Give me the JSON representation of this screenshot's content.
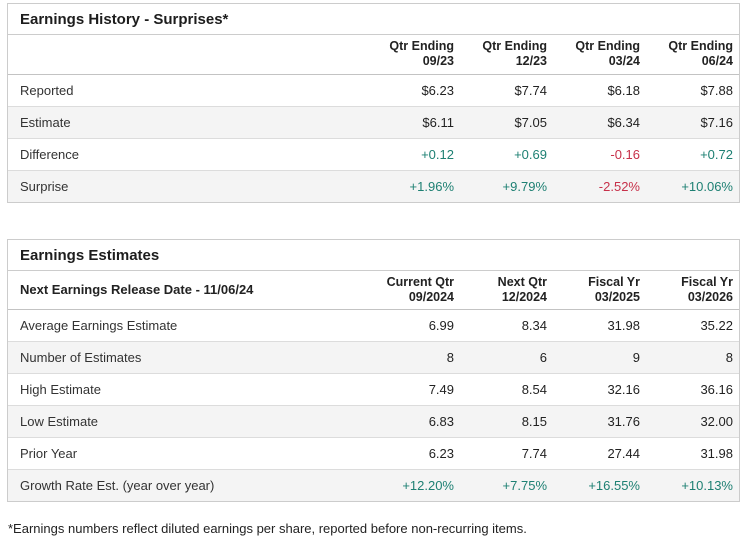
{
  "colors": {
    "positive": "#1e8073",
    "negative": "#c7314a"
  },
  "earnings_history": {
    "title": "Earnings History - Surprises*",
    "columns": [
      {
        "l1": "Qtr Ending",
        "l2": "09/23"
      },
      {
        "l1": "Qtr Ending",
        "l2": "12/23"
      },
      {
        "l1": "Qtr Ending",
        "l2": "03/24"
      },
      {
        "l1": "Qtr Ending",
        "l2": "06/24"
      }
    ],
    "rows": [
      {
        "label": "Reported",
        "values": [
          "$6.23",
          "$7.74",
          "$6.18",
          "$7.88"
        ]
      },
      {
        "label": "Estimate",
        "values": [
          "$6.11",
          "$7.05",
          "$6.34",
          "$7.16"
        ]
      },
      {
        "label": "Difference",
        "values": [
          "+0.12",
          "+0.69",
          "-0.16",
          "+0.72"
        ]
      },
      {
        "label": "Surprise",
        "values": [
          "+1.96%",
          "+9.79%",
          "-2.52%",
          "+10.06%"
        ]
      }
    ]
  },
  "earnings_estimates": {
    "title": "Earnings Estimates",
    "header_label": "Next Earnings Release Date - 11/06/24",
    "columns": [
      {
        "l1": "Current Qtr",
        "l2": "09/2024"
      },
      {
        "l1": "Next Qtr",
        "l2": "12/2024"
      },
      {
        "l1": "Fiscal Yr",
        "l2": "03/2025"
      },
      {
        "l1": "Fiscal Yr",
        "l2": "03/2026"
      }
    ],
    "rows": [
      {
        "label": "Average Earnings Estimate",
        "values": [
          "6.99",
          "8.34",
          "31.98",
          "35.22"
        ]
      },
      {
        "label": "Number of Estimates",
        "values": [
          "8",
          "6",
          "9",
          "8"
        ]
      },
      {
        "label": "High Estimate",
        "values": [
          "7.49",
          "8.54",
          "32.16",
          "36.16"
        ]
      },
      {
        "label": "Low Estimate",
        "values": [
          "6.83",
          "8.15",
          "31.76",
          "32.00"
        ]
      },
      {
        "label": "Prior Year",
        "values": [
          "6.23",
          "7.74",
          "27.44",
          "31.98"
        ]
      },
      {
        "label": "Growth Rate Est. (year over year)",
        "values": [
          "+12.20%",
          "+7.75%",
          "+16.55%",
          "+10.13%"
        ]
      }
    ]
  },
  "footnote": "*Earnings numbers reflect diluted earnings per share, reported before non-recurring items."
}
